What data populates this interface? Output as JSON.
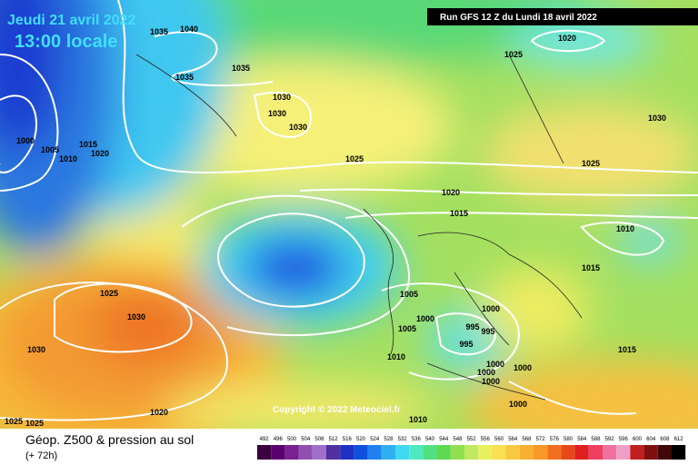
{
  "header": {
    "date": "Jeudi 21 avril 2022",
    "time": "13:00 locale",
    "run": "Run GFS 12 Z du Lundi 18 avril 2022"
  },
  "map": {
    "copyright": "Copyright © 2022 Meteociel.fr",
    "isobar_labels": [
      "1035",
      "1040",
      "1035",
      "1035",
      "1020",
      "1025",
      "1030",
      "1030",
      "1030",
      "1030",
      "1000",
      "1005",
      "1015",
      "1010",
      "1020",
      "1025",
      "1025",
      "1020",
      "1015",
      "1010",
      "1015",
      "1025",
      "1030",
      "1005",
      "1000",
      "1000",
      "995",
      "995",
      "1005",
      "995",
      "1030",
      "1010",
      "1015",
      "1000",
      "1000",
      "1000",
      "1000",
      "1000",
      "1020",
      "1010",
      "1025",
      "1025"
    ]
  },
  "legend": {
    "title": "Géop. Z500 & pression au sol",
    "subtitle": "(+ 72h)",
    "scale": [
      "492",
      "496",
      "500",
      "504",
      "508",
      "512",
      "516",
      "520",
      "524",
      "528",
      "532",
      "536",
      "540",
      "544",
      "548",
      "552",
      "556",
      "560",
      "564",
      "568",
      "572",
      "576",
      "580",
      "584",
      "588",
      "592",
      "596",
      "600",
      "604",
      "608",
      "612"
    ]
  }
}
